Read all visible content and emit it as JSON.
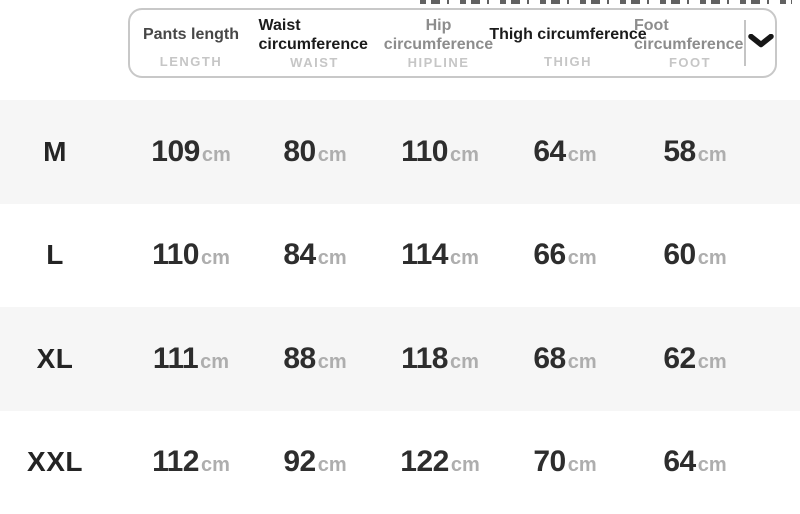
{
  "header": {
    "columns": [
      {
        "label": "Pants length",
        "sublabel": "LENGTH",
        "tone": "dark",
        "wrap": false,
        "align": "center"
      },
      {
        "label": "Waist circumference",
        "sublabel": "WAIST",
        "tone": "black",
        "wrap": true,
        "align": "left"
      },
      {
        "label": "Hip circumference",
        "sublabel": "HIPLINE",
        "tone": "gray",
        "wrap": true,
        "align": "center"
      },
      {
        "label": "Thigh circumference",
        "sublabel": "THIGH",
        "tone": "black",
        "wrap": false,
        "align": "center"
      },
      {
        "label": "Foot circumference",
        "sublabel": "FOOT",
        "tone": "gray",
        "wrap": true,
        "align": "left"
      }
    ],
    "expand_icon": "chevron-down-icon"
  },
  "table": {
    "unit": "cm",
    "rows": [
      {
        "size": "M",
        "values": [
          "109",
          "80",
          "110",
          "64",
          "58"
        ]
      },
      {
        "size": "L",
        "values": [
          "110",
          "84",
          "114",
          "66",
          "60"
        ]
      },
      {
        "size": "XL",
        "values": [
          "111",
          "88",
          "118",
          "68",
          "62"
        ]
      },
      {
        "size": "XXL",
        "values": [
          "112",
          "92",
          "122",
          "70",
          "64"
        ]
      }
    ]
  },
  "colors": {
    "header_black": "#1b1b1b",
    "header_dark": "#474747",
    "header_gray": "#8d8d8d",
    "sublabel_gray": "#c6c6c6",
    "number": "#2d2d2d",
    "unit": "#aeaeae",
    "row_stripe": "#f6f6f6",
    "border": "#c8c8c8",
    "chevron": "#161616"
  }
}
